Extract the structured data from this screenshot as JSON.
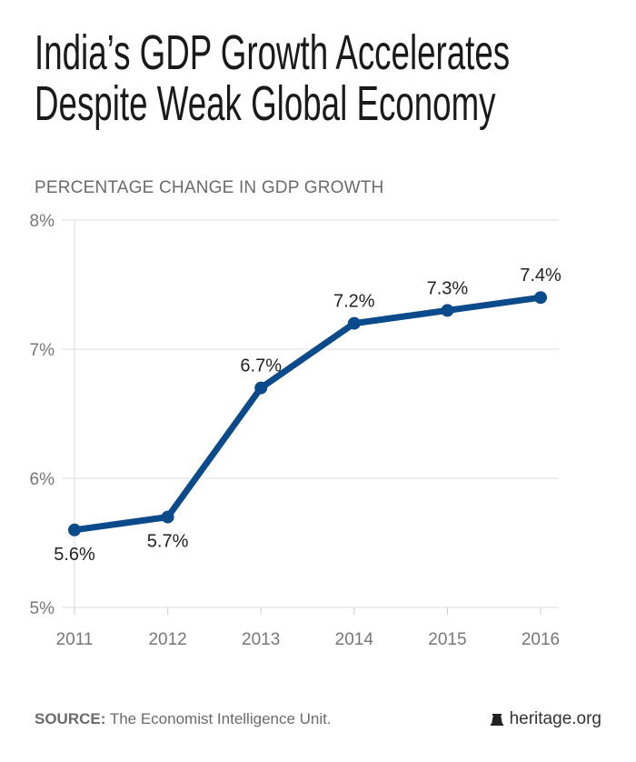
{
  "chart_data": {
    "type": "line",
    "title": "India’s GDP Growth Accelerates Despite Weak Global Economy",
    "title_lines": [
      "India’s GDP Growth Accelerates",
      "Despite Weak Global Economy"
    ],
    "subtitle": "PERCENTAGE CHANGE IN GDP GROWTH",
    "x": [
      "2011",
      "2012",
      "2013",
      "2014",
      "2015",
      "2016"
    ],
    "values": [
      5.6,
      5.7,
      6.7,
      7.2,
      7.3,
      7.4
    ],
    "data_labels": [
      "5.6%",
      "5.7%",
      "6.7%",
      "7.2%",
      "7.3%",
      "7.4%"
    ],
    "yticks": [
      5,
      6,
      7,
      8
    ],
    "ytick_labels": [
      "5%",
      "6%",
      "7%",
      "8%"
    ],
    "ylim": [
      5,
      8
    ],
    "grid": true,
    "line_color": "#0b4a8b"
  },
  "footer": {
    "source_label": "SOURCE:",
    "source_text": " The Economist Intelligence Unit.",
    "logo_text": "heritage.org",
    "logo_icon": "liberty-bell-icon"
  }
}
